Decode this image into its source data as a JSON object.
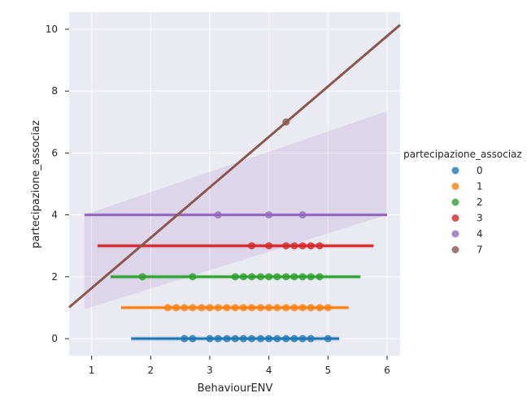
{
  "chart_data": {
    "type": "scatter",
    "title": "",
    "xlabel": "BehaviourENV",
    "ylabel": "partecipazione_associaz",
    "xlim": [
      0.62,
      6.22
    ],
    "ylim": [
      -0.55,
      10.55
    ],
    "xticks": [
      "1",
      "2",
      "3",
      "4",
      "5",
      "6"
    ],
    "yticks": [
      "0",
      "2",
      "4",
      "6",
      "8",
      "10"
    ],
    "grid": true,
    "background": "#EAEAF2",
    "legend": {
      "title": "partecipazione_associaz",
      "placement": "right",
      "entries": [
        "0",
        "1",
        "2",
        "3",
        "4",
        "7"
      ]
    },
    "series": [
      {
        "name": "0",
        "color": "#1f77b4",
        "y": 0,
        "x": [
          2.57,
          2.71,
          3.0,
          3.14,
          3.29,
          3.43,
          3.57,
          3.71,
          3.86,
          4.0,
          4.14,
          4.29,
          4.43,
          4.57,
          4.71,
          5.0
        ],
        "fit": [
          1.67,
          5.19
        ],
        "band": [
          -0.08,
          0.08
        ]
      },
      {
        "name": "1",
        "color": "#ff7f0e",
        "y": 1,
        "x": [
          2.29,
          2.43,
          2.57,
          2.71,
          2.86,
          3.0,
          3.14,
          3.29,
          3.43,
          3.57,
          3.71,
          3.86,
          4.0,
          4.14,
          4.29,
          4.43,
          4.57,
          4.71,
          4.86,
          5.0
        ],
        "fit": [
          1.5,
          5.35
        ],
        "band": [
          -0.07,
          0.07
        ]
      },
      {
        "name": "2",
        "color": "#2ca02c",
        "y": 2,
        "x": [
          1.86,
          2.71,
          3.43,
          3.57,
          3.71,
          3.86,
          4.0,
          4.14,
          4.29,
          4.43,
          4.57,
          4.71,
          4.86
        ],
        "fit": [
          1.32,
          5.55
        ],
        "band": [
          -0.08,
          0.08
        ]
      },
      {
        "name": "3",
        "color": "#d62728",
        "y": 3,
        "x": [
          3.71,
          4.0,
          4.29,
          4.43,
          4.57,
          4.71,
          4.86
        ],
        "fit": [
          1.1,
          5.77
        ],
        "band": [
          -0.08,
          0.08
        ]
      },
      {
        "name": "4",
        "color": "#9467bd",
        "y": 4,
        "x": [
          3.14,
          4.0,
          4.57
        ],
        "fit": [
          0.88,
          6.0
        ],
        "band": [
          -0.06,
          0.06
        ]
      },
      {
        "name": "7",
        "color": "#8c564b",
        "y": 7,
        "x": [
          4.29
        ],
        "fit_line": {
          "slope": 1.63,
          "intercept": 0.0
        },
        "band_poly": [
          [
            0.88,
            0.95
          ],
          [
            0.88,
            4.0
          ],
          [
            6.0,
            7.35
          ],
          [
            6.0,
            4.0
          ]
        ]
      }
    ]
  }
}
